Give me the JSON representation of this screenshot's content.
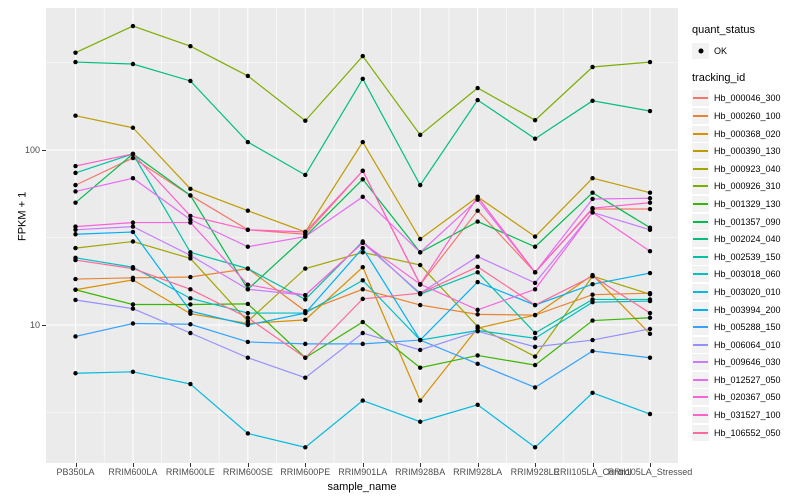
{
  "figure": {
    "panel_bg": "#EBEBEB",
    "grid_color": "#FFFFFF",
    "tick_text_color": "#4D4D4D",
    "point_color": "#000000"
  },
  "legend": {
    "quant_status_title": "quant_status",
    "quant_status_items": [
      {
        "label": "OK",
        "symbol": "point"
      }
    ],
    "tracking_id_title": "tracking_id"
  },
  "chart_data": {
    "type": "line",
    "title": "",
    "xlabel": "sample_name",
    "ylabel": "FPKM + 1",
    "y_scale": "log10",
    "ylim": [
      1.6,
      650
    ],
    "grid": true,
    "legend_position": "right",
    "y_ticks": [
      {
        "label": "100",
        "value": 100
      },
      {
        "label": "10",
        "value": 10
      }
    ],
    "y_minor_breaks": [
      3.162,
      31.62,
      316.2
    ],
    "x": [
      "PB350LA",
      "RRIM600LA",
      "RRIM600LE",
      "RRIM600SE",
      "RRIM600PE",
      "RRIM901LA",
      "RRIM928BA",
      "RRIM928LA",
      "RRIM928LE",
      "RRII105LA_Control",
      "RRII105LA_Stressed"
    ],
    "series": [
      {
        "name": "Hb_000046_300",
        "color": "#F8766D",
        "values": [
          63,
          90,
          55,
          35,
          33,
          76,
          17,
          45,
          20,
          46,
          46
        ]
      },
      {
        "name": "Hb_000260_100",
        "color": "#EA8331",
        "values": [
          18.3,
          18.6,
          18.8,
          21,
          12,
          16,
          13,
          11.5,
          11.4,
          14.9,
          15.2
        ]
      },
      {
        "name": "Hb_000368_020",
        "color": "#D89000",
        "values": [
          15.9,
          18.1,
          11.6,
          10.2,
          10.7,
          21.4,
          3.7,
          9.6,
          11.4,
          19.3,
          8.9
        ]
      },
      {
        "name": "Hb_000390_130",
        "color": "#C09B00",
        "values": [
          157,
          134,
          60,
          45,
          34,
          111,
          31,
          54,
          32,
          69,
          57
        ]
      },
      {
        "name": "Hb_000923_040",
        "color": "#A3A500",
        "values": [
          27.5,
          30,
          24,
          10.5,
          21,
          26,
          22,
          9.8,
          6.6,
          19,
          15
        ]
      },
      {
        "name": "Hb_000926_310",
        "color": "#7CAE00",
        "values": [
          360,
          511,
          392,
          265,
          147,
          344,
          122,
          226,
          148,
          298,
          318
        ]
      },
      {
        "name": "Hb_001329_130",
        "color": "#39B600",
        "values": [
          15.9,
          13.1,
          13.1,
          13.2,
          6.5,
          10.4,
          5.7,
          6.7,
          5.9,
          10.6,
          11
        ]
      },
      {
        "name": "Hb_001357_090",
        "color": "#00BB4E",
        "values": [
          50,
          95,
          55,
          16,
          32,
          68,
          26,
          39,
          28,
          57,
          36
        ]
      },
      {
        "name": "Hb_002024_040",
        "color": "#00BF7D",
        "values": [
          318,
          310,
          248,
          111,
          72,
          255,
          63,
          193,
          116,
          191,
          167
        ]
      },
      {
        "name": "Hb_002539_150",
        "color": "#00C1A3",
        "values": [
          74,
          95,
          26,
          21,
          14,
          30,
          15,
          20,
          9,
          14,
          14
        ]
      },
      {
        "name": "Hb_003018_060",
        "color": "#00BFC4",
        "values": [
          24.2,
          21.4,
          14.2,
          11.7,
          11.7,
          18,
          8.2,
          9.3,
          8.4,
          13.5,
          13.7
        ]
      },
      {
        "name": "Hb_003020_010",
        "color": "#00BAE0",
        "values": [
          5.3,
          5.4,
          4.6,
          2.4,
          2.0,
          3.7,
          2.8,
          3.5,
          2.0,
          4.1,
          3.1
        ]
      },
      {
        "name": "Hb_003994_200",
        "color": "#00B0F6",
        "values": [
          33,
          34,
          12,
          10,
          11.7,
          27.5,
          8.2,
          17.6,
          13,
          17.1,
          19.8
        ]
      },
      {
        "name": "Hb_005288_150",
        "color": "#35A2FF",
        "values": [
          8.6,
          10.2,
          10.1,
          8,
          7.8,
          7.8,
          8.2,
          6.0,
          4.4,
          7.1,
          6.5
        ]
      },
      {
        "name": "Hb_006064_010",
        "color": "#9590FF",
        "values": [
          13.9,
          12.4,
          9,
          6.5,
          5.0,
          9,
          7.2,
          9.2,
          7.5,
          8.2,
          9.5
        ]
      },
      {
        "name": "Hb_009646_030",
        "color": "#C77CFF",
        "values": [
          35,
          36.5,
          25,
          16,
          14.8,
          29.5,
          15.2,
          24.6,
          17.4,
          44,
          35
        ]
      },
      {
        "name": "Hb_012527_050",
        "color": "#E76BF3",
        "values": [
          58,
          69,
          40,
          28,
          32,
          54,
          26,
          52,
          20,
          52.5,
          53
        ]
      },
      {
        "name": "Hb_020367_050",
        "color": "#FA62DB",
        "values": [
          36.5,
          38.5,
          38.5,
          17,
          14.8,
          29.5,
          17.1,
          12.2,
          16,
          44,
          26.4
        ]
      },
      {
        "name": "Hb_031527_100",
        "color": "#FF61C9",
        "values": [
          81,
          95,
          42,
          35,
          34,
          76,
          17.1,
          54,
          20,
          46.5,
          50
        ]
      },
      {
        "name": "Hb_106552_050",
        "color": "#FF6A98",
        "values": [
          23.5,
          21,
          16,
          11,
          6.5,
          14.1,
          15.2,
          21.5,
          13,
          19,
          11.7
        ]
      }
    ]
  }
}
